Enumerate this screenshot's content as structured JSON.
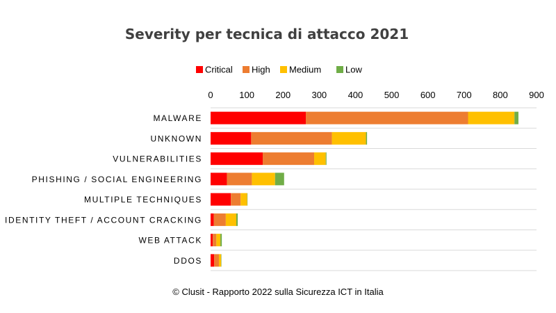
{
  "chart_data": {
    "type": "bar",
    "orientation": "horizontal",
    "stacked": true,
    "title": "Severity per tecnica di attacco 2021",
    "categories": [
      "MALWARE",
      "UNKNOWN",
      "VULNERABILITIES",
      "PHISHING / SOCIAL ENGINEERING",
      "MULTIPLE TECHNIQUES",
      "IDENTITY THEFT / ACCOUNT CRACKING",
      "WEB ATTACK",
      "DDOS"
    ],
    "series": [
      {
        "name": "Critical",
        "color": "#ff0000",
        "values": [
          263,
          112,
          144,
          45,
          56,
          9,
          6,
          10
        ]
      },
      {
        "name": "High",
        "color": "#ed7d31",
        "values": [
          448,
          223,
          142,
          69,
          27,
          33,
          10,
          13
        ]
      },
      {
        "name": "Medium",
        "color": "#ffc000",
        "values": [
          128,
          94,
          32,
          64,
          18,
          29,
          11,
          6
        ]
      },
      {
        "name": "Low",
        "color": "#70ad47",
        "values": [
          11,
          3,
          2,
          25,
          1,
          4,
          4,
          1
        ]
      }
    ],
    "xlim": [
      0,
      900
    ],
    "xticks": [
      "0",
      "100",
      "200",
      "300",
      "400",
      "500",
      "600",
      "700",
      "800",
      "900"
    ],
    "axis_position": "top",
    "grid": true,
    "legend_position": "top"
  },
  "footer": "© Clusit - Rapporto 2022 sulla Sicurezza ICT in Italia"
}
